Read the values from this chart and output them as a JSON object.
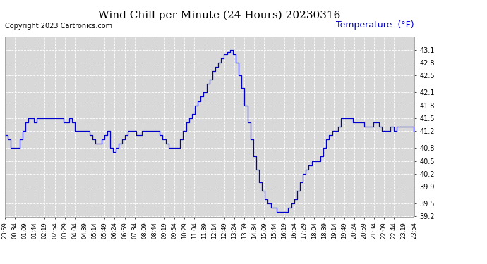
{
  "title": "Wind Chill per Minute (24 Hours) 20230316",
  "copyright": "Copyright 2023 Cartronics.com",
  "ylabel": "Temperature  (°F)",
  "ylabel_color": "#0000cc",
  "line_color": "#0000cc",
  "bg_color": "#ffffff",
  "plot_bg_color": "#d8d8d8",
  "grid_color": "#ffffff",
  "ylim_min": 39.2,
  "ylim_max": 43.4,
  "yticks": [
    39.2,
    39.5,
    39.9,
    40.2,
    40.5,
    40.8,
    41.2,
    41.5,
    41.8,
    42.1,
    42.5,
    42.8,
    43.1
  ],
  "x_labels": [
    "23:59",
    "00:34",
    "01:09",
    "01:44",
    "02:19",
    "02:54",
    "03:29",
    "04:04",
    "04:39",
    "05:14",
    "05:49",
    "06:24",
    "06:59",
    "07:34",
    "08:09",
    "08:44",
    "09:19",
    "09:54",
    "10:29",
    "11:04",
    "11:39",
    "12:14",
    "12:49",
    "13:24",
    "13:59",
    "14:34",
    "15:09",
    "15:44",
    "16:19",
    "16:54",
    "17:29",
    "18:04",
    "18:39",
    "19:14",
    "19:49",
    "20:24",
    "20:59",
    "21:34",
    "22:09",
    "22:44",
    "23:19",
    "23:54"
  ],
  "data_y": [
    41.1,
    41.0,
    40.8,
    40.8,
    40.8,
    41.0,
    41.2,
    41.4,
    41.5,
    41.5,
    41.4,
    41.5,
    41.5,
    41.5,
    41.5,
    41.5,
    41.5,
    41.5,
    41.5,
    41.5,
    41.4,
    41.4,
    41.5,
    41.4,
    41.2,
    41.2,
    41.2,
    41.2,
    41.2,
    41.1,
    41.0,
    40.9,
    40.9,
    41.0,
    41.1,
    41.2,
    40.8,
    40.7,
    40.8,
    40.9,
    41.0,
    41.1,
    41.2,
    41.2,
    41.2,
    41.1,
    41.1,
    41.2,
    41.2,
    41.2,
    41.2,
    41.2,
    41.2,
    41.1,
    41.0,
    40.9,
    40.8,
    40.8,
    40.8,
    40.8,
    41.0,
    41.2,
    41.4,
    41.5,
    41.6,
    41.8,
    41.9,
    42.0,
    42.1,
    42.3,
    42.4,
    42.6,
    42.7,
    42.8,
    42.9,
    43.0,
    43.05,
    43.1,
    43.0,
    42.8,
    42.5,
    42.2,
    41.8,
    41.4,
    41.0,
    40.6,
    40.3,
    40.0,
    39.8,
    39.6,
    39.5,
    39.4,
    39.4,
    39.3,
    39.3,
    39.3,
    39.3,
    39.4,
    39.5,
    39.6,
    39.8,
    40.0,
    40.2,
    40.3,
    40.4,
    40.5,
    40.5,
    40.5,
    40.6,
    40.8,
    41.0,
    41.1,
    41.2,
    41.2,
    41.3,
    41.5,
    41.5,
    41.5,
    41.5,
    41.4,
    41.4,
    41.4,
    41.4,
    41.3,
    41.3,
    41.3,
    41.4,
    41.4,
    41.3,
    41.2,
    41.2,
    41.2,
    41.3,
    41.2,
    41.3,
    41.3,
    41.3,
    41.3,
    41.3,
    41.3,
    41.2
  ],
  "title_fontsize": 11,
  "tick_fontsize": 7,
  "copyright_fontsize": 7
}
